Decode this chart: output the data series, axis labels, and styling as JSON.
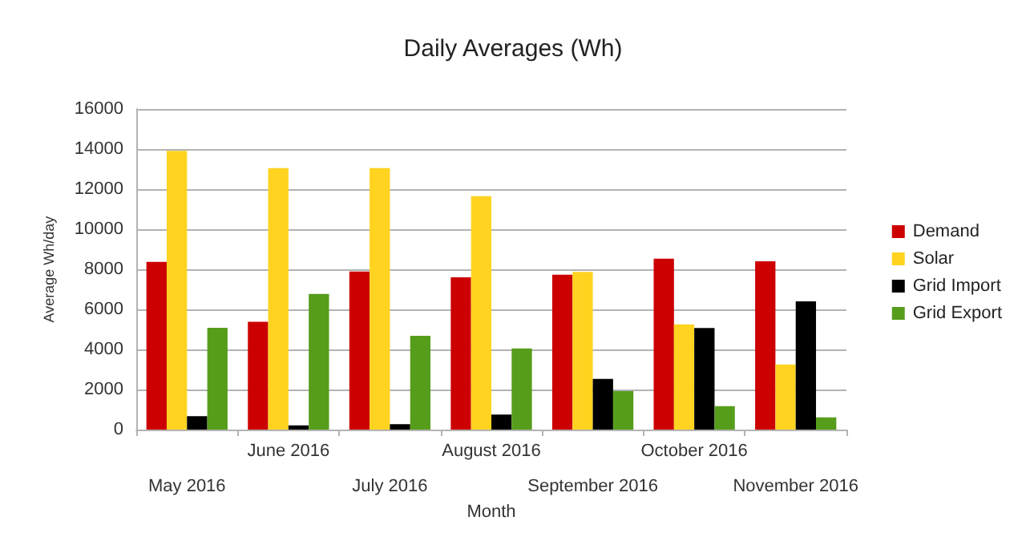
{
  "chart_data": {
    "type": "bar",
    "title": "Daily Averages (Wh)",
    "xlabel": "Month",
    "ylabel": "Average Wh/day",
    "categories": [
      "May 2016",
      "June 2016",
      "July 2016",
      "August 2016",
      "September 2016",
      "October 2016",
      "November 2016"
    ],
    "series": [
      {
        "name": "Demand",
        "color": "#cc0000",
        "values": [
          8370,
          5380,
          7890,
          7600,
          7730,
          8530,
          8400
        ]
      },
      {
        "name": "Solar",
        "color": "#ffd320",
        "values": [
          13910,
          13050,
          13050,
          11650,
          7870,
          5250,
          3250
        ]
      },
      {
        "name": "Grid Import",
        "color": "#000000",
        "values": [
          670,
          210,
          270,
          750,
          2530,
          5070,
          6400
        ]
      },
      {
        "name": "Grid Export",
        "color": "#579d1c",
        "values": [
          5080,
          6770,
          4680,
          4050,
          1920,
          1170,
          610
        ]
      }
    ],
    "ylim": [
      0,
      16000
    ],
    "yticks": [
      0,
      2000,
      4000,
      6000,
      8000,
      10000,
      12000,
      14000,
      16000
    ],
    "grid": "y",
    "legend": "right"
  }
}
